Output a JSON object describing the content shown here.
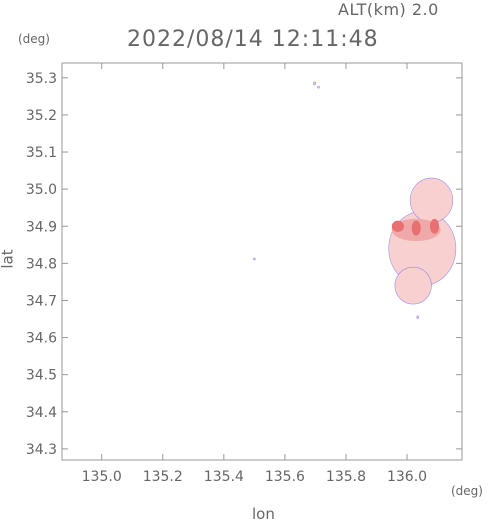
{
  "header": {
    "altitude_label": "ALT(km) 2.0",
    "timestamp": "2022/08/14 12:11:48"
  },
  "chart_data": {
    "type": "heatmap",
    "title": "2022/08/14 12:11:48",
    "subtitle": "ALT(km) 2.0",
    "xlabel": "lon",
    "ylabel": "lat",
    "x_unit": "(deg)",
    "y_unit": "(deg)",
    "xlim": [
      134.87,
      136.18
    ],
    "ylim": [
      34.27,
      35.34
    ],
    "x_ticks": [
      "135.0",
      "135.2",
      "135.4",
      "135.6",
      "135.8",
      "136.0"
    ],
    "x_tick_values": [
      135.0,
      135.2,
      135.4,
      135.6,
      135.8,
      136.0
    ],
    "y_ticks": [
      "34.3",
      "34.4",
      "34.5",
      "34.6",
      "34.7",
      "34.8",
      "34.9",
      "35.0",
      "35.1",
      "35.2",
      "35.3"
    ],
    "y_tick_values": [
      34.3,
      34.4,
      34.5,
      34.6,
      34.7,
      34.8,
      34.9,
      35.0,
      35.1,
      35.2,
      35.3
    ],
    "grid": false,
    "colors": {
      "frame": "#999999",
      "echo_light": "#f8d0d0",
      "echo_mid": "#f0a8a8",
      "echo_strong": "#e87070",
      "echo_edge": "#4040ff"
    },
    "echo_cells": [
      {
        "lon": 136.05,
        "lat": 34.84,
        "rlon": 0.11,
        "rlat": 0.1,
        "level": "light"
      },
      {
        "lon": 136.08,
        "lat": 34.97,
        "rlon": 0.07,
        "rlat": 0.06,
        "level": "light"
      },
      {
        "lon": 136.02,
        "lat": 34.74,
        "rlon": 0.06,
        "rlat": 0.05,
        "level": "light"
      },
      {
        "lon": 136.03,
        "lat": 34.89,
        "rlon": 0.08,
        "rlat": 0.03,
        "level": "mid"
      },
      {
        "lon": 135.97,
        "lat": 34.9,
        "rlon": 0.02,
        "rlat": 0.015,
        "level": "strong"
      },
      {
        "lon": 136.03,
        "lat": 34.895,
        "rlon": 0.015,
        "rlat": 0.02,
        "level": "strong"
      },
      {
        "lon": 136.09,
        "lat": 34.9,
        "rlon": 0.015,
        "rlat": 0.02,
        "level": "strong"
      },
      {
        "lon": 135.697,
        "lat": 35.285,
        "rlon": 0.004,
        "rlat": 0.004,
        "level": "light"
      },
      {
        "lon": 135.71,
        "lat": 35.275,
        "rlon": 0.003,
        "rlat": 0.003,
        "level": "light"
      },
      {
        "lon": 136.035,
        "lat": 34.655,
        "rlon": 0.003,
        "rlat": 0.004,
        "level": "light"
      },
      {
        "lon": 135.5,
        "lat": 34.812,
        "rlon": 0.001,
        "rlat": 0.002,
        "level": "light"
      }
    ]
  }
}
